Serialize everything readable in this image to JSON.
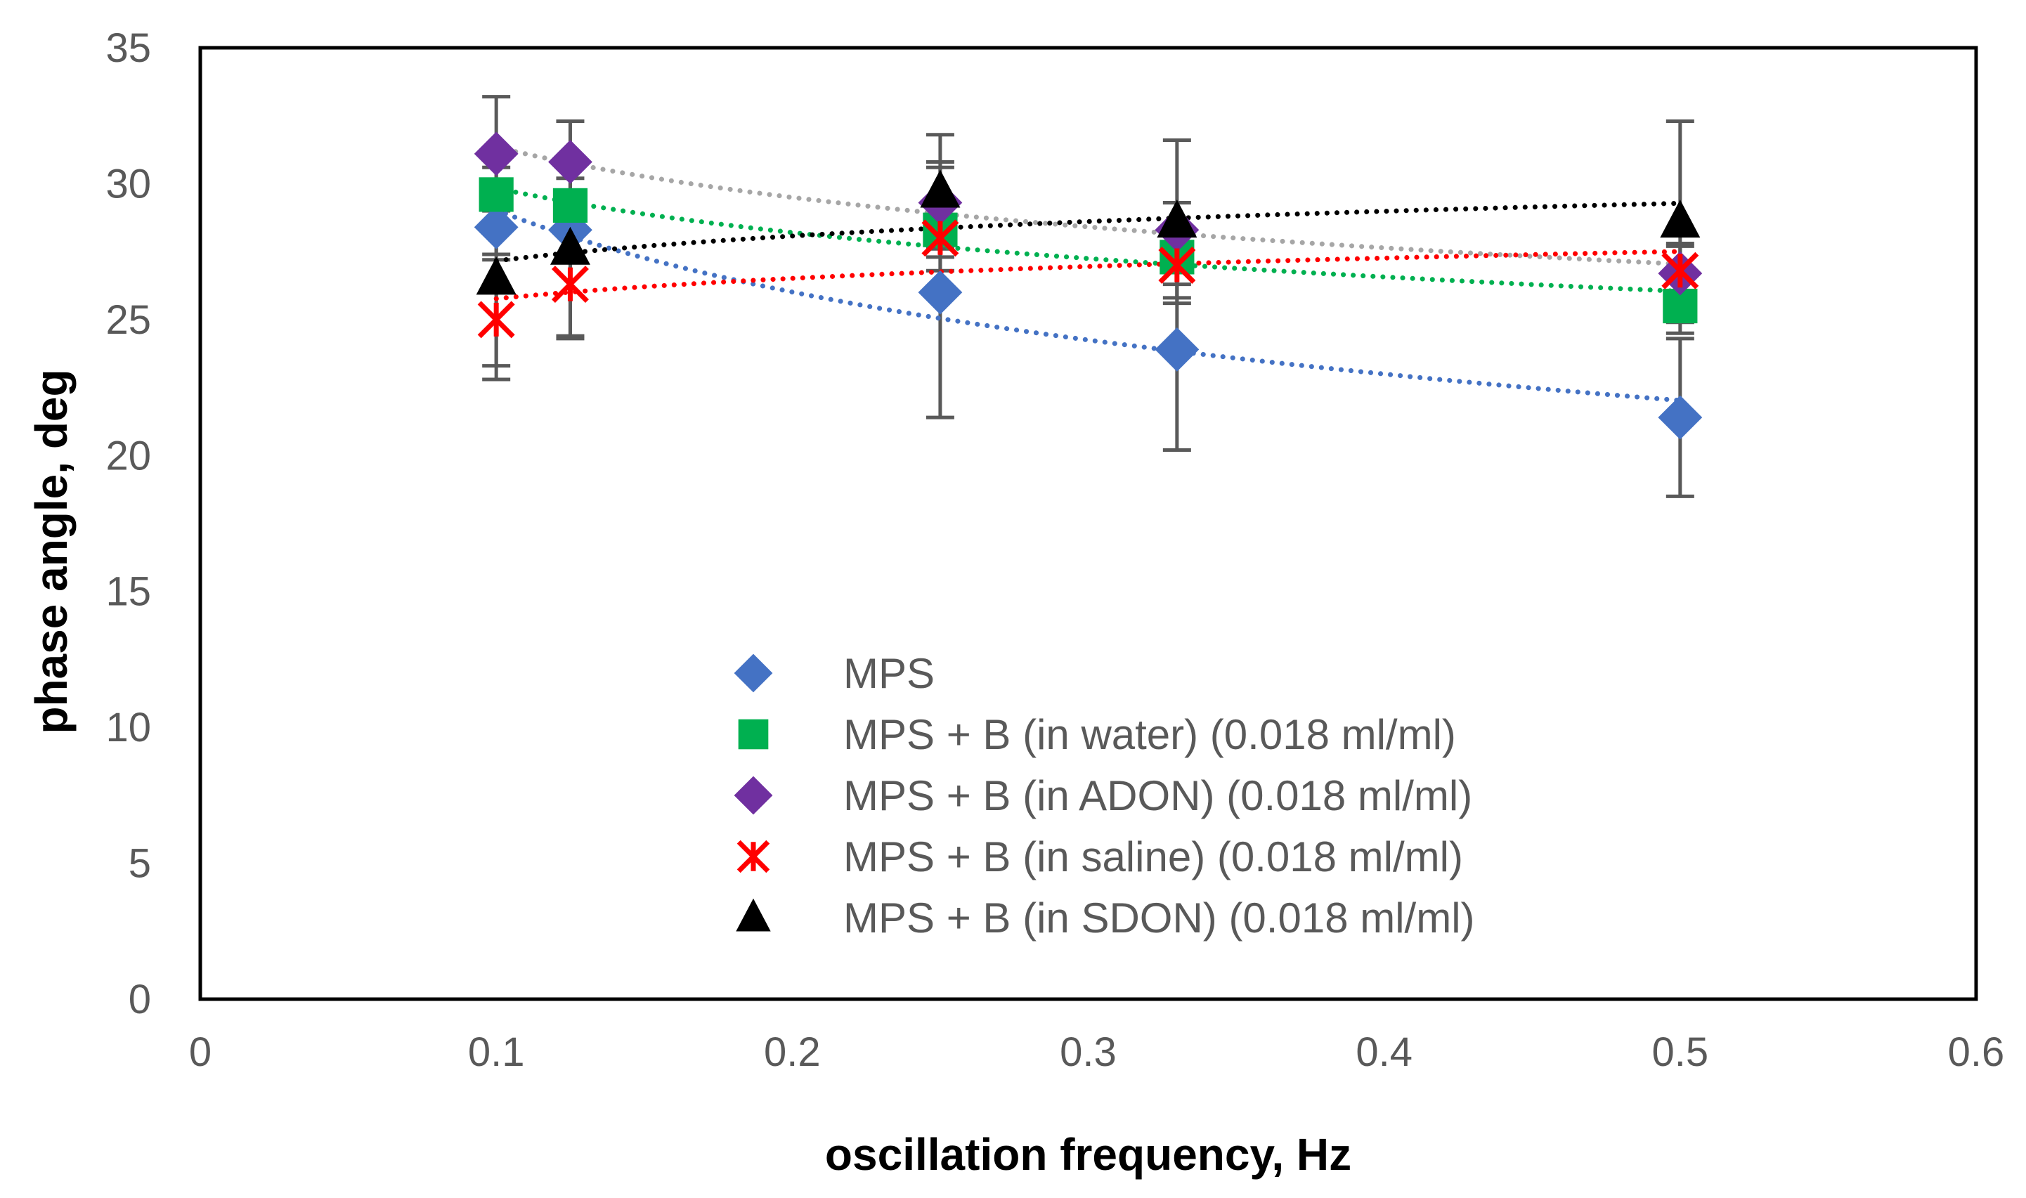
{
  "chart_data": {
    "type": "scatter",
    "title": "",
    "xlabel": "oscillation frequency, Hz",
    "ylabel": "phase angle, deg",
    "xlim": [
      0,
      0.6
    ],
    "ylim": [
      0,
      35
    ],
    "xticks": [
      0,
      0.1,
      0.2,
      0.3,
      0.4,
      0.5,
      0.6
    ],
    "yticks": [
      0,
      5,
      10,
      15,
      20,
      25,
      30,
      35
    ],
    "xtick_labels": [
      "0",
      "0.1",
      "0.2",
      "0.3",
      "0.4",
      "0.5",
      "0.6"
    ],
    "ytick_labels": [
      "0",
      "5",
      "10",
      "15",
      "20",
      "25",
      "30",
      "35"
    ],
    "grid": false,
    "legend_position": "center-bottom inside plot",
    "series": [
      {
        "name": "MPS",
        "marker": "diamond",
        "color": "#4472C4",
        "trend_color": "#4472C4",
        "x": [
          0.1,
          0.125,
          0.25,
          0.33,
          0.5
        ],
        "y": [
          28.4,
          28.3,
          26.0,
          23.9,
          21.4
        ],
        "yerr": [
          1.0,
          1.0,
          4.6,
          3.7,
          2.9
        ]
      },
      {
        "name": "MPS + B (in water) (0.018 ml/ml)",
        "marker": "square",
        "color": "#00B050",
        "trend_color": "#00B050",
        "x": [
          0.1,
          0.125,
          0.25,
          0.33,
          0.5
        ],
        "y": [
          29.6,
          29.2,
          28.3,
          27.3,
          25.5
        ],
        "yerr": [
          1.0,
          1.0,
          1.0,
          1.0,
          1.0
        ]
      },
      {
        "name": "MPS + B (in ADON) (0.018 ml/ml)",
        "marker": "diamond",
        "color": "#7030A0",
        "trend_color": "#A6A6A6",
        "x": [
          0.1,
          0.125,
          0.25,
          0.33,
          0.5
        ],
        "y": [
          31.1,
          30.8,
          29.3,
          28.3,
          26.7
        ],
        "yerr": [
          2.1,
          1.5,
          1.5,
          1.0,
          1.0
        ]
      },
      {
        "name": "MPS + B (in saline) (0.018 ml/ml)",
        "marker": "x",
        "color": "#FF0000",
        "trend_color": "#FF0000",
        "x": [
          0.1,
          0.125,
          0.25,
          0.33,
          0.5
        ],
        "y": [
          25.0,
          26.3,
          28.0,
          27.0,
          26.8
        ],
        "yerr": [
          2.2,
          2.0,
          1.2,
          1.2,
          1.0
        ]
      },
      {
        "name": "MPS + B (in SDON) (0.018 ml/ml)",
        "marker": "triangle",
        "color": "#000000",
        "trend_color": "#000000",
        "x": [
          0.1,
          0.125,
          0.25,
          0.33,
          0.5
        ],
        "y": [
          26.5,
          27.6,
          29.7,
          28.6,
          28.6
        ],
        "yerr": [
          3.2,
          3.2,
          2.1,
          3.0,
          3.7
        ]
      }
    ]
  }
}
